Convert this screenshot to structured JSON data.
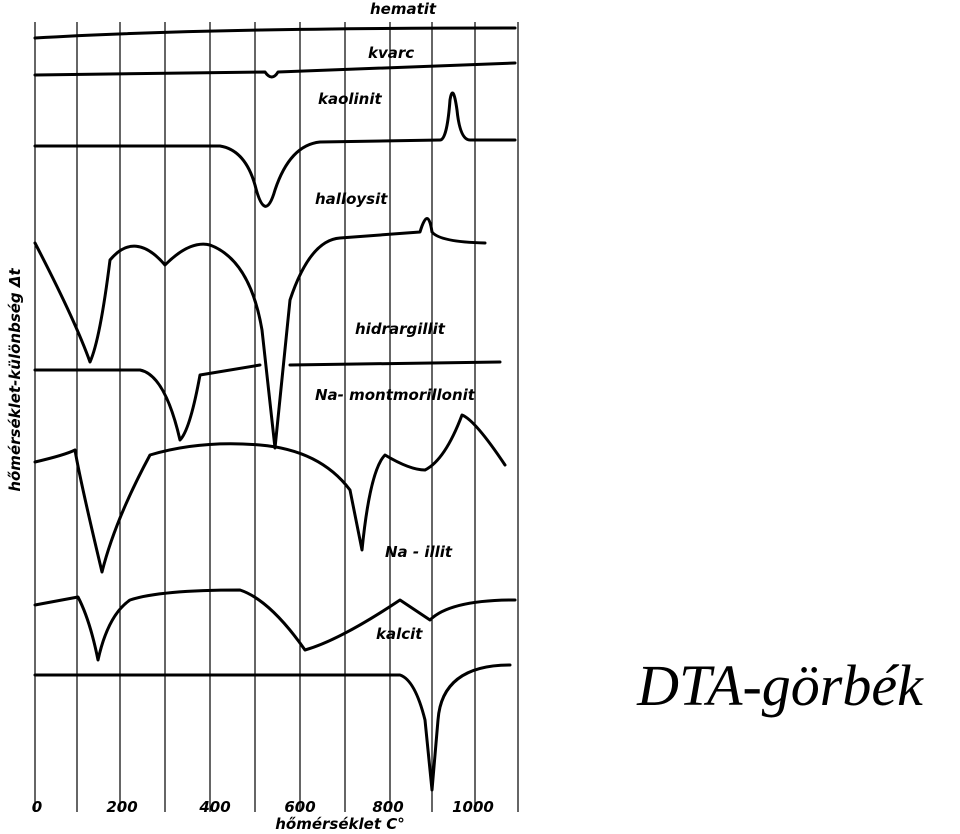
{
  "curve_labels": [
    "hematit",
    "kvarc",
    "kaolinit",
    "halloysit",
    "hidrargillit",
    "Na- montmorillonit",
    "Na - illit",
    "kalcit"
  ],
  "x_ticks": [
    "0",
    "200",
    "400",
    "600",
    "800",
    "1000"
  ],
  "x_axis_label": "hőmérséklet C°",
  "y_axis_label": "hőmérséklet-különbség Δt",
  "title": "DTA-görbék"
}
